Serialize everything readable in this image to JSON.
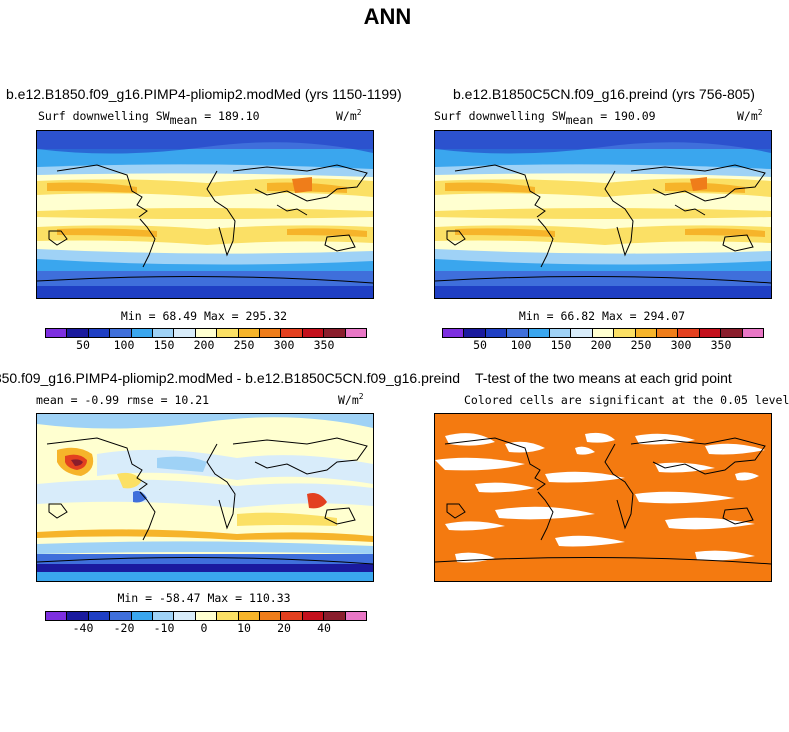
{
  "main_title": "ANN",
  "panels": {
    "top_left": {
      "title": "b.e12.B1850.f09_g16.PIMP4-pliomip2.modMed (yrs 1150-1199)",
      "subtitle_main": "Surf downwelling SW",
      "subtitle_sub": "mean",
      "subtitle_value": "= 189.10",
      "units": "W/m",
      "units_exp": "2",
      "minmax": "Min =  68.49 Max = 295.32"
    },
    "top_right": {
      "title": "b.e12.B1850C5CN.f09_g16.preind (yrs 756-805)",
      "subtitle_main": "Surf downwelling SW",
      "subtitle_sub": "mean",
      "subtitle_value": "= 190.09",
      "units": "W/m",
      "units_exp": "2",
      "minmax": "Min =  66.82 Max = 294.07"
    },
    "bottom_left": {
      "title": "850.f09_g16.PIMP4-pliomip2.modMed - b.e12.B1850C5CN.f09_g16.preind",
      "stats": "mean =  -0.99    rmse =  10.21",
      "units": "W/m",
      "units_exp": "2",
      "minmax": "Min = -58.47 Max = 110.33"
    },
    "bottom_right": {
      "title": "T-test of the two means at each grid point",
      "subtitle": "Colored cells are significant at the 0.05 level"
    }
  },
  "colorbars": {
    "abs_ticks": [
      "50",
      "100",
      "150",
      "200",
      "250",
      "300",
      "350"
    ],
    "diff_ticks": [
      "-40",
      "-20",
      "-10",
      "0",
      "10",
      "20",
      "40"
    ],
    "colors": [
      "#7d2fe0",
      "#1a1a9e",
      "#1f3fc4",
      "#3f6fdb",
      "#3aa6ee",
      "#9fd2f6",
      "#d8ecfa",
      "#ffffd0",
      "#fbe065",
      "#f6b42a",
      "#ef7d1a",
      "#e3401f",
      "#c4101c",
      "#8a1d2c",
      "#e977c6"
    ],
    "significance_color": "#f47a10"
  }
}
